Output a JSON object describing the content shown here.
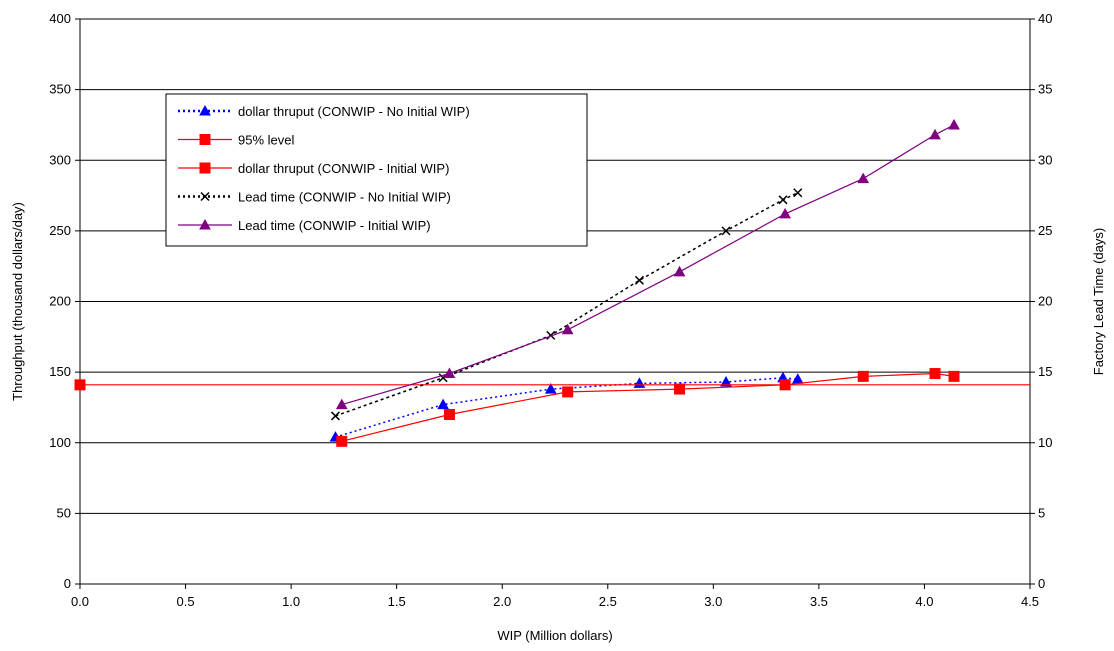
{
  "chart_data": {
    "type": "line",
    "title": "",
    "xlabel": "WIP (Million dollars)",
    "ylabel": "Throughput (thousand dollars/day)",
    "y2label": "Factory Lead Time (days)",
    "xlim": [
      0,
      4.5
    ],
    "ylim": [
      0,
      400
    ],
    "y2lim": [
      0,
      40
    ],
    "x_ticks": [
      "0.0",
      "0.5",
      "1.0",
      "1.5",
      "2.0",
      "2.5",
      "3.0",
      "3.5",
      "4.0",
      "4.5"
    ],
    "y_ticks": [
      "0",
      "50",
      "100",
      "150",
      "200",
      "250",
      "300",
      "350",
      "400"
    ],
    "y2_ticks": [
      "0",
      "5",
      "10",
      "15",
      "20",
      "25",
      "30",
      "35",
      "40"
    ],
    "grid": "horizontal",
    "legend_position": "top-left",
    "series": [
      {
        "name": "dollar thruput (CONWIP -  No Initial WIP)",
        "axis": "left",
        "color": "#0000ff",
        "line_style": "dotted",
        "marker": "triangle",
        "x": [
          1.21,
          1.72,
          2.23,
          2.65,
          3.06,
          3.33,
          3.4
        ],
        "y": [
          104,
          127,
          138,
          142,
          143,
          146,
          145
        ]
      },
      {
        "name": "95% level",
        "axis": "left",
        "color": "#ff0000",
        "line_style": "solid",
        "marker": "square",
        "x": [
          0,
          4.5
        ],
        "y": [
          141,
          141
        ]
      },
      {
        "name": "dollar thruput (CONWIP - Initial WIP)",
        "axis": "left",
        "color": "#ff0000",
        "line_style": "solid",
        "marker": "square",
        "x": [
          1.24,
          1.75,
          2.31,
          2.84,
          3.34,
          3.71,
          4.05,
          4.14
        ],
        "y": [
          101,
          120,
          136,
          138,
          141,
          147,
          149,
          147
        ]
      },
      {
        "name": "Lead time (CONWIP - No Initial WIP)",
        "axis": "right",
        "color": "#000000",
        "line_style": "dotted",
        "marker": "x",
        "x": [
          1.21,
          1.72,
          2.23,
          2.65,
          3.06,
          3.33,
          3.4
        ],
        "y": [
          11.9,
          14.6,
          17.6,
          21.5,
          25.0,
          27.2,
          27.7
        ]
      },
      {
        "name": "Lead time (CONWIP - Initial WIP)",
        "axis": "right",
        "color": "#800080",
        "line_style": "solid",
        "marker": "triangle",
        "x": [
          1.24,
          1.75,
          2.31,
          2.84,
          3.34,
          3.71,
          4.05,
          4.14
        ],
        "y": [
          12.7,
          14.9,
          18.0,
          22.1,
          26.2,
          28.7,
          31.8,
          32.5
        ]
      }
    ]
  }
}
